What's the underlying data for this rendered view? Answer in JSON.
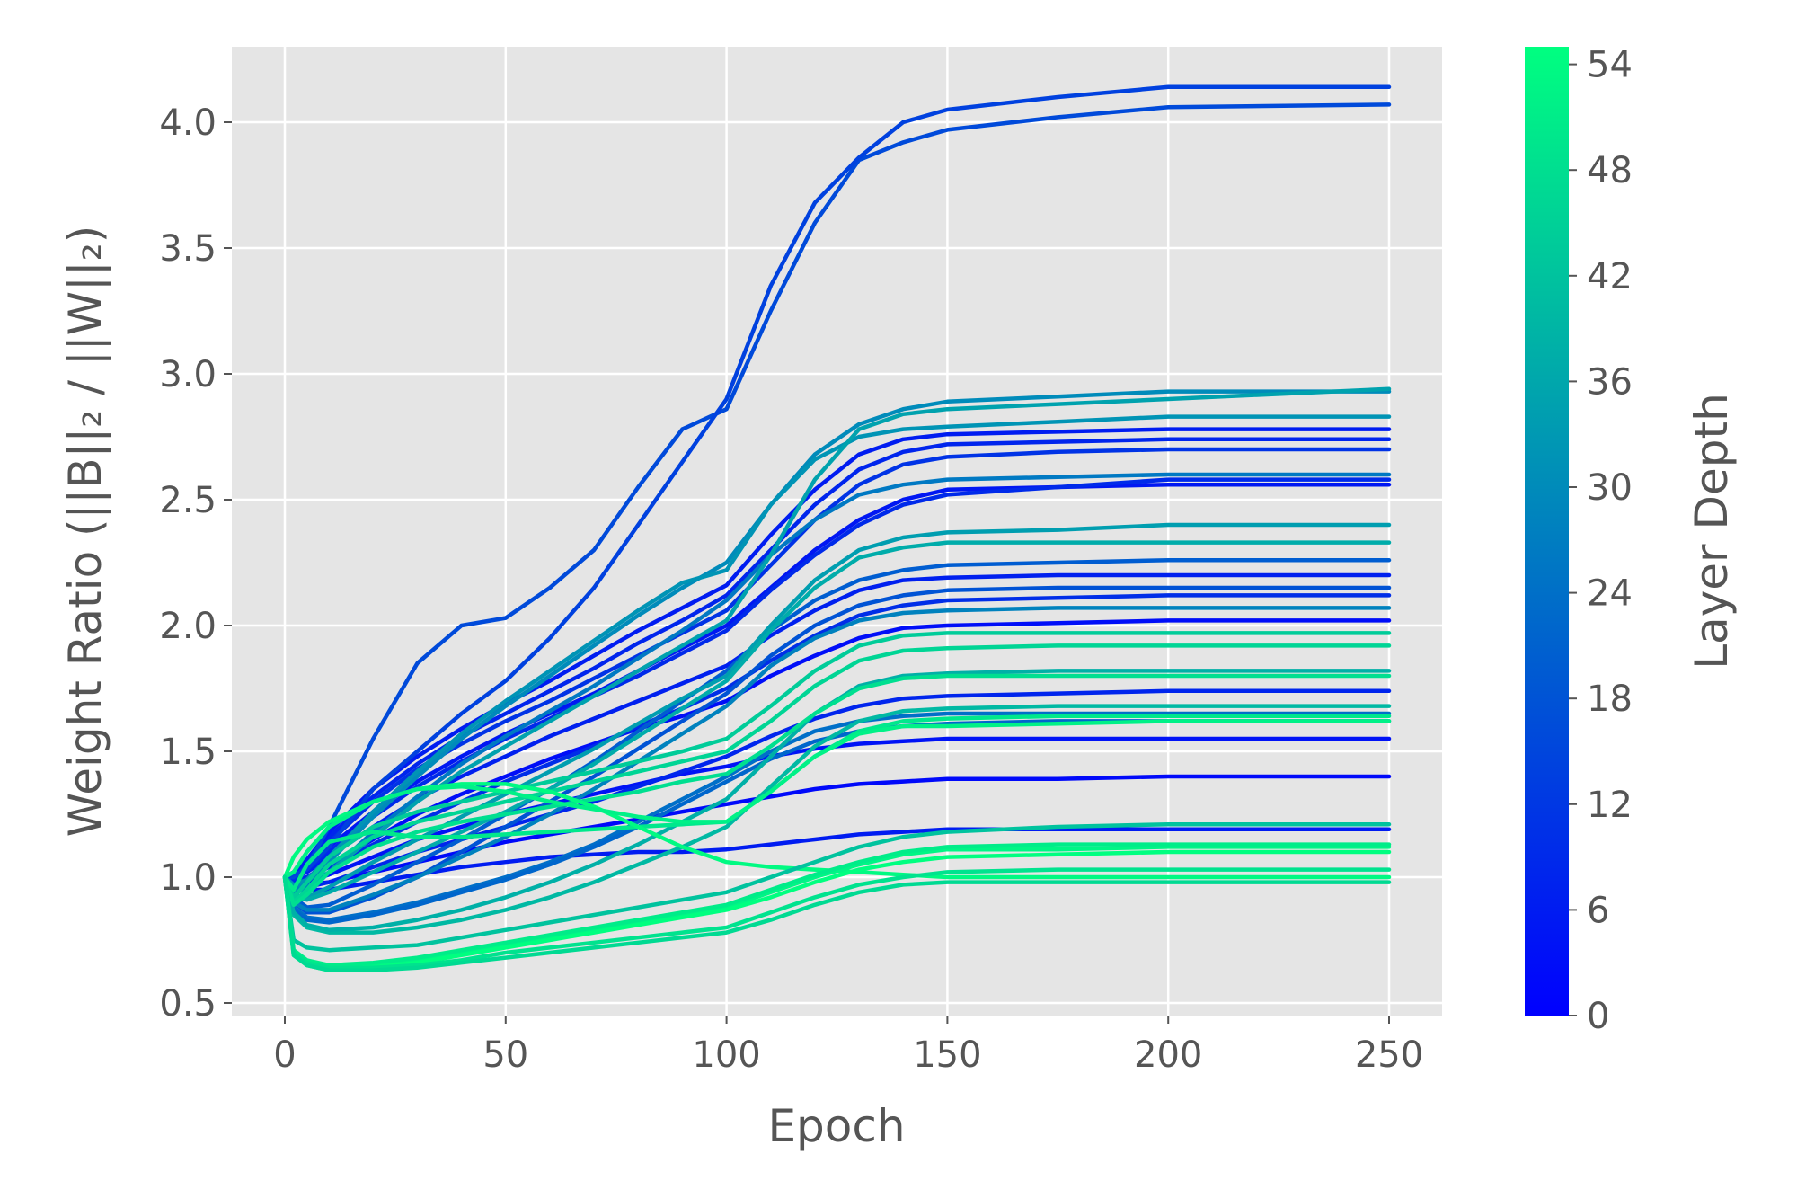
{
  "chart_data": {
    "type": "line",
    "xlabel": "Epoch",
    "ylabel": "Weight Ratio  (||B||₂ / ||W||₂)",
    "xlim": [
      -12,
      262
    ],
    "ylim": [
      0.45,
      4.3
    ],
    "xticks": [
      0,
      50,
      100,
      150,
      200,
      250
    ],
    "yticks": [
      0.5,
      1.0,
      1.5,
      2.0,
      2.5,
      3.0,
      3.5,
      4.0
    ],
    "xtick_labels": [
      "0",
      "50",
      "100",
      "150",
      "200",
      "250"
    ],
    "ytick_labels": [
      "0.5",
      "1.0",
      "1.5",
      "2.0",
      "2.5",
      "3.0",
      "3.5",
      "4.0"
    ],
    "grid": true,
    "background": "#e5e5e5",
    "colormap": "winter",
    "colorbar": {
      "label": "Layer Depth",
      "min": 0,
      "max": 55,
      "ticks": [
        0,
        6,
        12,
        18,
        24,
        30,
        36,
        42,
        48,
        54
      ],
      "tick_labels": [
        "0",
        "6",
        "12",
        "18",
        "24",
        "30",
        "36",
        "42",
        "48",
        "54"
      ],
      "color_low": "#0000ff",
      "color_high": "#00ff80"
    },
    "x": [
      0,
      2,
      5,
      10,
      20,
      30,
      40,
      50,
      60,
      70,
      80,
      90,
      100,
      110,
      120,
      130,
      140,
      150,
      175,
      200,
      250
    ],
    "series": [
      {
        "depth": 6,
        "values": [
          1.0,
          0.97,
          0.95,
          0.95,
          0.98,
          1.01,
          1.04,
          1.06,
          1.08,
          1.09,
          1.1,
          1.1,
          1.11,
          1.13,
          1.15,
          1.17,
          1.18,
          1.19,
          1.19,
          1.19,
          1.19
        ]
      },
      {
        "depth": 2,
        "values": [
          1.0,
          0.98,
          0.97,
          0.98,
          1.02,
          1.06,
          1.1,
          1.14,
          1.17,
          1.2,
          1.23,
          1.26,
          1.29,
          1.32,
          1.35,
          1.37,
          1.38,
          1.39,
          1.39,
          1.4,
          1.4
        ]
      },
      {
        "depth": 4,
        "values": [
          1.0,
          0.98,
          0.98,
          1.01,
          1.08,
          1.15,
          1.2,
          1.25,
          1.29,
          1.33,
          1.37,
          1.41,
          1.44,
          1.48,
          1.51,
          1.53,
          1.54,
          1.55,
          1.55,
          1.55,
          1.55
        ]
      },
      {
        "depth": 8,
        "values": [
          1.0,
          0.97,
          0.96,
          0.98,
          1.04,
          1.1,
          1.15,
          1.2,
          1.25,
          1.3,
          1.36,
          1.42,
          1.48,
          1.56,
          1.63,
          1.68,
          1.71,
          1.72,
          1.73,
          1.74,
          1.74
        ]
      },
      {
        "depth": 3,
        "values": [
          1.0,
          0.99,
          1.0,
          1.05,
          1.15,
          1.25,
          1.33,
          1.4,
          1.47,
          1.53,
          1.59,
          1.64,
          1.7,
          1.8,
          1.88,
          1.95,
          1.99,
          2.0,
          2.01,
          2.02,
          2.02
        ]
      },
      {
        "depth": 10,
        "values": [
          1.0,
          0.99,
          1.0,
          1.04,
          1.13,
          1.22,
          1.3,
          1.38,
          1.45,
          1.52,
          1.6,
          1.67,
          1.75,
          1.86,
          1.96,
          2.04,
          2.08,
          2.1,
          2.11,
          2.12,
          2.12
        ]
      },
      {
        "depth": 7,
        "values": [
          1.0,
          1.0,
          1.02,
          1.08,
          1.2,
          1.31,
          1.4,
          1.48,
          1.56,
          1.63,
          1.7,
          1.77,
          1.84,
          1.96,
          2.06,
          2.14,
          2.18,
          2.19,
          2.2,
          2.2,
          2.2
        ]
      },
      {
        "depth": 5,
        "values": [
          1.0,
          1.01,
          1.04,
          1.12,
          1.26,
          1.38,
          1.48,
          1.57,
          1.65,
          1.73,
          1.82,
          1.91,
          2.0,
          2.15,
          2.3,
          2.42,
          2.5,
          2.54,
          2.55,
          2.56,
          2.56
        ]
      },
      {
        "depth": 9,
        "values": [
          1.0,
          1.0,
          1.03,
          1.1,
          1.24,
          1.36,
          1.46,
          1.55,
          1.63,
          1.72,
          1.8,
          1.89,
          1.98,
          2.14,
          2.28,
          2.4,
          2.48,
          2.52,
          2.55,
          2.58,
          2.58
        ]
      },
      {
        "depth": 11,
        "values": [
          1.0,
          1.01,
          1.05,
          1.14,
          1.3,
          1.43,
          1.53,
          1.62,
          1.7,
          1.79,
          1.88,
          1.97,
          2.06,
          2.24,
          2.42,
          2.56,
          2.64,
          2.67,
          2.69,
          2.7,
          2.7
        ]
      },
      {
        "depth": 8,
        "values": [
          1.0,
          1.02,
          1.06,
          1.16,
          1.32,
          1.45,
          1.56,
          1.65,
          1.74,
          1.83,
          1.93,
          2.02,
          2.12,
          2.3,
          2.48,
          2.62,
          2.69,
          2.72,
          2.73,
          2.74,
          2.74
        ]
      },
      {
        "depth": 6,
        "values": [
          1.0,
          1.02,
          1.07,
          1.18,
          1.35,
          1.48,
          1.59,
          1.69,
          1.78,
          1.88,
          1.98,
          2.07,
          2.16,
          2.36,
          2.54,
          2.68,
          2.74,
          2.76,
          2.77,
          2.78,
          2.78
        ]
      },
      {
        "depth": 16,
        "values": [
          1.0,
          1.0,
          1.04,
          1.2,
          1.55,
          1.85,
          2.0,
          2.03,
          2.15,
          2.3,
          2.55,
          2.78,
          2.86,
          3.25,
          3.6,
          3.85,
          3.92,
          3.97,
          4.02,
          4.06,
          4.07
        ]
      },
      {
        "depth": 14,
        "values": [
          1.0,
          1.01,
          1.03,
          1.12,
          1.35,
          1.5,
          1.65,
          1.78,
          1.95,
          2.15,
          2.4,
          2.65,
          2.9,
          3.35,
          3.68,
          3.86,
          4.0,
          4.05,
          4.1,
          4.14,
          4.14
        ]
      },
      {
        "depth": 18,
        "values": [
          1.0,
          0.9,
          0.86,
          0.86,
          0.92,
          1.0,
          1.1,
          1.2,
          1.3,
          1.4,
          1.51,
          1.62,
          1.73,
          1.88,
          2.0,
          2.08,
          2.12,
          2.14,
          2.15,
          2.15,
          2.15
        ]
      },
      {
        "depth": 20,
        "values": [
          1.0,
          0.92,
          0.88,
          0.89,
          0.97,
          1.06,
          1.15,
          1.25,
          1.35,
          1.46,
          1.58,
          1.7,
          1.82,
          1.98,
          2.1,
          2.18,
          2.22,
          2.24,
          2.25,
          2.26,
          2.26
        ]
      },
      {
        "depth": 24,
        "values": [
          1.0,
          0.88,
          0.84,
          0.83,
          0.86,
          0.9,
          0.95,
          1.0,
          1.06,
          1.13,
          1.22,
          1.31,
          1.4,
          1.5,
          1.58,
          1.62,
          1.64,
          1.65,
          1.65,
          1.65,
          1.65
        ]
      },
      {
        "depth": 22,
        "values": [
          1.0,
          0.87,
          0.83,
          0.82,
          0.85,
          0.89,
          0.94,
          0.99,
          1.05,
          1.12,
          1.2,
          1.29,
          1.38,
          1.47,
          1.54,
          1.58,
          1.6,
          1.61,
          1.62,
          1.62,
          1.62
        ]
      },
      {
        "depth": 26,
        "values": [
          1.0,
          0.95,
          0.96,
          1.02,
          1.18,
          1.32,
          1.45,
          1.56,
          1.66,
          1.76,
          1.87,
          1.98,
          2.1,
          2.28,
          2.42,
          2.52,
          2.56,
          2.58,
          2.59,
          2.6,
          2.6
        ]
      },
      {
        "depth": 30,
        "values": [
          1.0,
          0.96,
          0.98,
          1.06,
          1.24,
          1.4,
          1.55,
          1.68,
          1.8,
          1.92,
          2.04,
          2.15,
          2.25,
          2.48,
          2.68,
          2.8,
          2.86,
          2.89,
          2.91,
          2.93,
          2.93
        ]
      },
      {
        "depth": 32,
        "values": [
          1.0,
          0.97,
          0.99,
          1.08,
          1.26,
          1.42,
          1.57,
          1.7,
          1.82,
          1.94,
          2.06,
          2.17,
          2.22,
          2.48,
          2.66,
          2.75,
          2.78,
          2.79,
          2.81,
          2.83,
          2.83
        ]
      },
      {
        "depth": 35,
        "values": [
          1.0,
          0.94,
          0.95,
          1.02,
          1.16,
          1.3,
          1.42,
          1.52,
          1.62,
          1.72,
          1.82,
          1.92,
          2.02,
          2.28,
          2.58,
          2.78,
          2.84,
          2.86,
          2.88,
          2.9,
          2.94
        ]
      },
      {
        "depth": 34,
        "values": [
          1.0,
          0.93,
          0.92,
          0.96,
          1.06,
          1.15,
          1.24,
          1.33,
          1.42,
          1.51,
          1.61,
          1.71,
          1.8,
          2.0,
          2.18,
          2.3,
          2.35,
          2.37,
          2.38,
          2.4,
          2.4
        ]
      },
      {
        "depth": 37,
        "values": [
          1.0,
          0.92,
          0.91,
          0.94,
          1.02,
          1.1,
          1.18,
          1.26,
          1.35,
          1.45,
          1.56,
          1.67,
          1.78,
          1.98,
          2.15,
          2.27,
          2.31,
          2.33,
          2.33,
          2.33,
          2.33
        ]
      },
      {
        "depth": 28,
        "values": [
          1.0,
          0.9,
          0.87,
          0.87,
          0.93,
          1.0,
          1.08,
          1.16,
          1.25,
          1.35,
          1.46,
          1.57,
          1.68,
          1.84,
          1.95,
          2.02,
          2.05,
          2.06,
          2.07,
          2.07,
          2.07
        ]
      },
      {
        "depth": 40,
        "values": [
          1.0,
          0.85,
          0.8,
          0.78,
          0.78,
          0.8,
          0.83,
          0.87,
          0.92,
          0.98,
          1.05,
          1.12,
          1.2,
          1.36,
          1.52,
          1.62,
          1.66,
          1.67,
          1.68,
          1.68,
          1.68
        ]
      },
      {
        "depth": 38,
        "values": [
          1.0,
          0.86,
          0.81,
          0.79,
          0.8,
          0.83,
          0.87,
          0.92,
          0.98,
          1.05,
          1.13,
          1.22,
          1.31,
          1.48,
          1.65,
          1.76,
          1.8,
          1.81,
          1.82,
          1.82,
          1.82
        ]
      },
      {
        "depth": 44,
        "values": [
          1.0,
          0.92,
          0.98,
          1.08,
          1.2,
          1.26,
          1.3,
          1.34,
          1.38,
          1.42,
          1.46,
          1.5,
          1.55,
          1.68,
          1.82,
          1.92,
          1.96,
          1.97,
          1.97,
          1.97,
          1.97
        ]
      },
      {
        "depth": 46,
        "values": [
          1.0,
          0.9,
          0.95,
          1.05,
          1.16,
          1.22,
          1.26,
          1.3,
          1.34,
          1.38,
          1.42,
          1.46,
          1.5,
          1.62,
          1.76,
          1.86,
          1.9,
          1.91,
          1.92,
          1.92,
          1.92
        ]
      },
      {
        "depth": 48,
        "values": [
          1.0,
          0.89,
          0.93,
          1.02,
          1.12,
          1.18,
          1.22,
          1.25,
          1.28,
          1.31,
          1.34,
          1.38,
          1.41,
          1.52,
          1.65,
          1.75,
          1.79,
          1.8,
          1.8,
          1.8,
          1.8
        ]
      },
      {
        "depth": 50,
        "values": [
          1.0,
          0.95,
          1.05,
          1.14,
          1.18,
          1.16,
          1.16,
          1.17,
          1.18,
          1.19,
          1.2,
          1.21,
          1.22,
          1.34,
          1.48,
          1.58,
          1.62,
          1.63,
          1.64,
          1.64,
          1.64
        ]
      },
      {
        "depth": 54,
        "values": [
          1.0,
          1.08,
          1.15,
          1.22,
          1.3,
          1.35,
          1.37,
          1.37,
          1.34,
          1.28,
          1.2,
          1.12,
          1.06,
          1.04,
          1.03,
          1.02,
          1.01,
          1.0,
          1.0,
          1.0,
          1.0
        ]
      },
      {
        "depth": 52,
        "values": [
          1.0,
          1.02,
          1.1,
          1.2,
          1.3,
          1.35,
          1.36,
          1.34,
          1.3,
          1.27,
          1.24,
          1.22,
          1.22,
          1.34,
          1.48,
          1.57,
          1.6,
          1.6,
          1.61,
          1.62,
          1.62
        ]
      },
      {
        "depth": 42,
        "values": [
          1.0,
          0.75,
          0.72,
          0.71,
          0.72,
          0.73,
          0.76,
          0.79,
          0.82,
          0.85,
          0.88,
          0.91,
          0.94,
          1.0,
          1.06,
          1.12,
          1.16,
          1.18,
          1.2,
          1.21,
          1.21
        ]
      },
      {
        "depth": 53,
        "values": [
          1.0,
          0.7,
          0.66,
          0.64,
          0.65,
          0.67,
          0.7,
          0.73,
          0.76,
          0.79,
          0.82,
          0.85,
          0.88,
          0.94,
          1.0,
          1.05,
          1.09,
          1.11,
          1.11,
          1.12,
          1.12
        ]
      },
      {
        "depth": 55,
        "values": [
          1.0,
          0.69,
          0.65,
          0.63,
          0.64,
          0.66,
          0.69,
          0.72,
          0.75,
          0.78,
          0.81,
          0.84,
          0.87,
          0.92,
          0.98,
          1.03,
          1.06,
          1.08,
          1.09,
          1.1,
          1.1
        ]
      },
      {
        "depth": 51,
        "values": [
          1.0,
          0.71,
          0.67,
          0.65,
          0.66,
          0.68,
          0.71,
          0.74,
          0.77,
          0.8,
          0.83,
          0.86,
          0.89,
          0.95,
          1.01,
          1.06,
          1.1,
          1.12,
          1.13,
          1.13,
          1.13
        ]
      },
      {
        "depth": 49,
        "values": [
          1.0,
          0.7,
          0.66,
          0.64,
          0.64,
          0.65,
          0.67,
          0.7,
          0.72,
          0.74,
          0.76,
          0.78,
          0.8,
          0.86,
          0.92,
          0.97,
          1.0,
          1.02,
          1.03,
          1.03,
          1.03
        ]
      },
      {
        "depth": 47,
        "values": [
          1.0,
          0.69,
          0.65,
          0.63,
          0.63,
          0.64,
          0.66,
          0.68,
          0.7,
          0.72,
          0.74,
          0.76,
          0.78,
          0.83,
          0.89,
          0.94,
          0.97,
          0.98,
          0.98,
          0.98,
          0.98
        ]
      }
    ]
  }
}
